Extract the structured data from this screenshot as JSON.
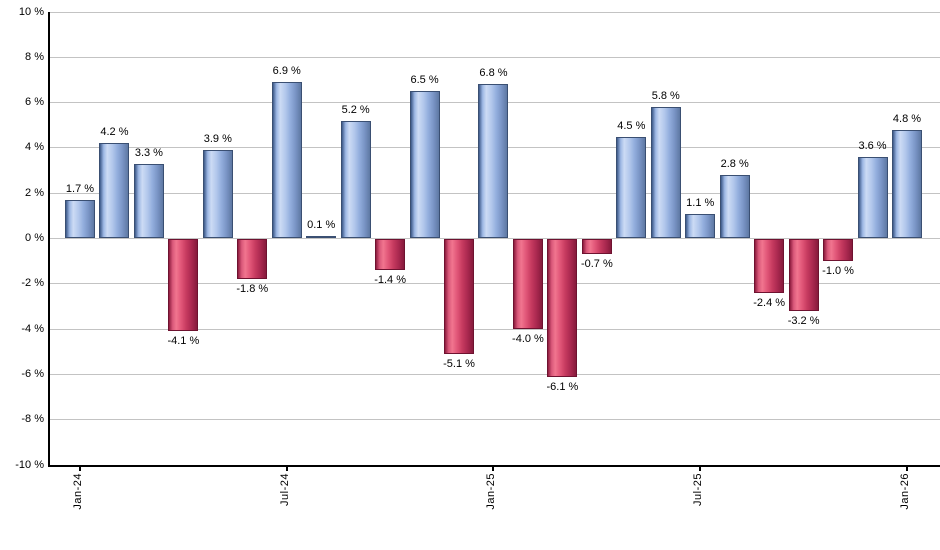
{
  "chart_data": {
    "type": "bar",
    "title": "",
    "unit": "%",
    "values": [
      1.7,
      4.2,
      3.3,
      -4.1,
      3.9,
      -1.8,
      6.9,
      0.1,
      5.2,
      -1.4,
      6.5,
      -5.1,
      6.8,
      -4.0,
      -6.1,
      -0.7,
      4.5,
      5.8,
      1.1,
      2.8,
      -2.4,
      -3.2,
      -1.0,
      3.6,
      4.8
    ],
    "bar_labels": [
      "1.7 %",
      "4.2 %",
      "3.3 %",
      "-4.1 %",
      "3.9 %",
      "-1.8 %",
      "6.9 %",
      "0.1 %",
      "5.2 %",
      "-1.4 %",
      "6.5 %",
      "-5.1 %",
      "6.8 %",
      "-4.0 %",
      "-6.1 %",
      "-0.7 %",
      "4.5 %",
      "5.8 %",
      "1.1 %",
      "2.8 %",
      "-2.4 %",
      "-3.2 %",
      "-1.0 %",
      "3.6 %",
      "4.8 %"
    ],
    "x_ticks": [
      {
        "label": "Jan-24",
        "bar_index": 0
      },
      {
        "label": "Jul-24",
        "bar_index": 6
      },
      {
        "label": "Jan-25",
        "bar_index": 12
      },
      {
        "label": "Jul-25",
        "bar_index": 18
      },
      {
        "label": "Jan-26",
        "bar_index": 24
      }
    ],
    "y_tick_labels": [
      "10 %",
      "8 %",
      "6 %",
      "4 %",
      "2 %",
      "0 %",
      "-2 %",
      "-4 %",
      "-6 %",
      "-8 %",
      "-10 %"
    ],
    "y_tick_values": [
      10,
      8,
      6,
      4,
      2,
      0,
      -2,
      -4,
      -6,
      -8,
      -10
    ],
    "ylim": [
      -10,
      10
    ],
    "grid": true,
    "legend": "none",
    "colors": {
      "positive_bar": "#8fabdc",
      "negative_bar": "#d94f6e",
      "gridline": "#c3c3c3",
      "axis": "#000000",
      "label_text": "#000000"
    }
  }
}
